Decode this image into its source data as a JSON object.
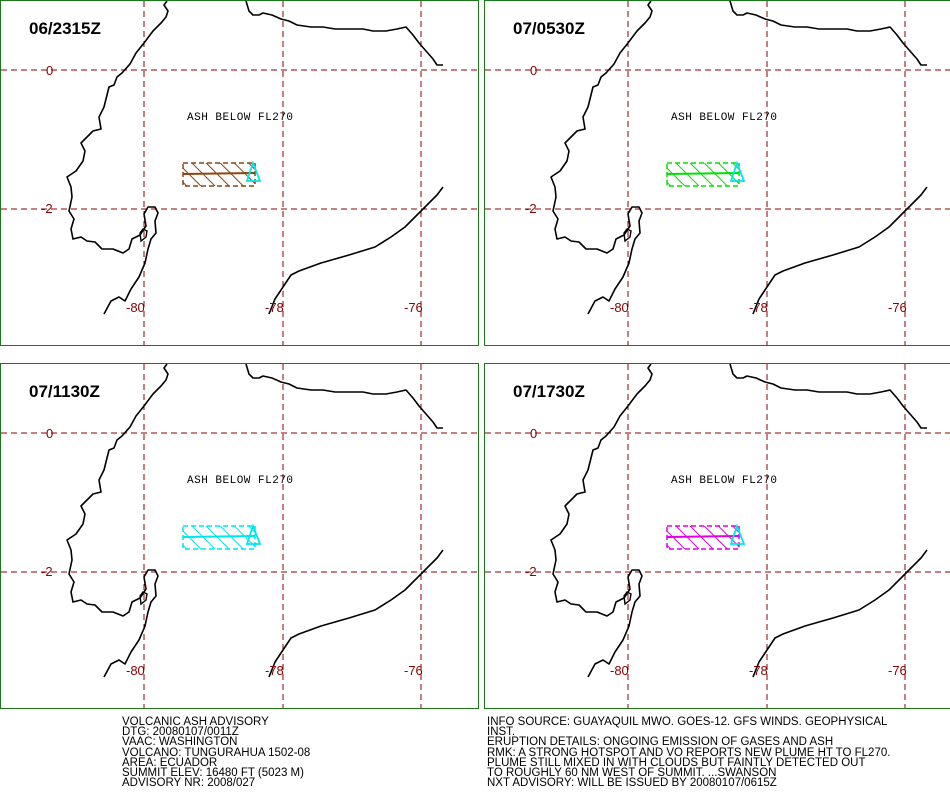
{
  "panels": [
    {
      "time": "06/2315Z",
      "ash_label": "ASH BELOW FL270",
      "ash_color": "#8b4513",
      "lat_labels": [
        "0",
        "-2"
      ],
      "lon_labels": [
        "-80",
        "-78",
        "-76"
      ]
    },
    {
      "time": "07/0530Z",
      "ash_label": "ASH BELOW FL270",
      "ash_color": "#00e000",
      "lat_labels": [
        "0",
        "-2"
      ],
      "lon_labels": [
        "-80",
        "-78",
        "-76"
      ]
    },
    {
      "time": "07/1130Z",
      "ash_label": "ASH BELOW FL270",
      "ash_color": "#00e5ee",
      "lat_labels": [
        "0",
        "-2"
      ],
      "lon_labels": [
        "-80",
        "-78",
        "-76"
      ]
    },
    {
      "time": "07/1730Z",
      "ash_label": "ASH BELOW FL270",
      "ash_color": "#e000e0",
      "lat_labels": [
        "0",
        "-2"
      ],
      "lon_labels": [
        "-80",
        "-78",
        "-76"
      ]
    }
  ],
  "volcano_marker_color": "#00e5ee",
  "grid_color": "#8b0000",
  "advisory": {
    "lines": [
      "VOLCANIC ASH ADVISORY",
      "DTG: 20080107/0011Z",
      "VAAC: WASHINGTON",
      "VOLCANO: TUNGURAHUA 1502-08",
      "AREA: ECUADOR",
      "SUMMIT ELEV: 16480 FT (5023 M)",
      "ADVISORY NR: 2008/027"
    ]
  },
  "info": {
    "lines": [
      "INFO SOURCE: GUAYAQUIL MWO. GOES-12. GFS WINDS. GEOPHYSICAL",
      "INST.",
      "ERUPTION DETAILS: ONGOING EMISSION OF GASES AND ASH",
      "RMK: A STRONG HOTSPOT AND VO REPORTS NEW PLUME HT TO FL270.",
      "PLUME STILL MIXED IN WITH CLOUDS BUT FAINTLY DETECTED OUT",
      "TO ROUGHLY 60 NM WEST OF SUMMIT. ...SWANSON",
      "NXT ADVISORY: WILL BE ISSUED BY 20080107/0615Z"
    ]
  }
}
